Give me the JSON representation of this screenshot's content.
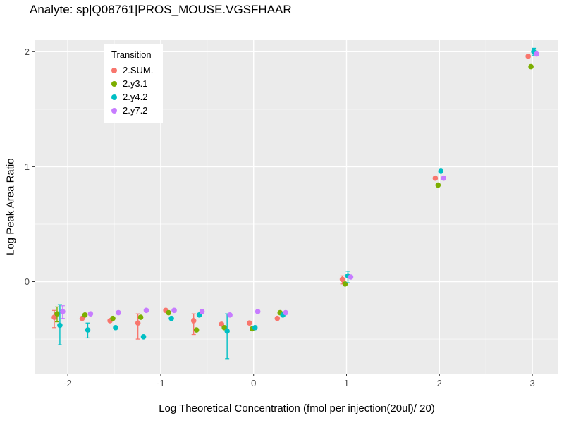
{
  "chart_data": {
    "type": "scatter",
    "title": "Analyte: sp|Q08761|PROS_MOUSE.VGSFHAAR",
    "xlabel": "Log Theoretical Concentration (fmol per injection(20ul)/ 20)",
    "ylabel": "Log Peak Area Ratio",
    "legend_title": "Transition",
    "legend_position": "top-left-inside",
    "grid": true,
    "panel_bg": "#EBEBEB",
    "grid_color": "#FFFFFF",
    "tick_color": "#333333",
    "tick_label_color": "#4D4D4D",
    "xlim": [
      -2.35,
      3.28
    ],
    "ylim": [
      -0.8,
      2.1
    ],
    "x_ticks": [
      -2,
      -1,
      0,
      1,
      2,
      3
    ],
    "x_minor": [
      -1.5,
      -0.5,
      0.5,
      1.5,
      2.5
    ],
    "y_ticks": [
      0,
      1,
      2
    ],
    "y_minor": [
      -0.5,
      0.5,
      1.5
    ],
    "x": [
      -2.1,
      -1.8,
      -1.5,
      -1.2,
      -0.9,
      -0.6,
      -0.3,
      0,
      0.3,
      1,
      2,
      3
    ],
    "series": [
      {
        "name": "2.SUM.",
        "color": "#F8766D",
        "dodge": -0.045,
        "y": [
          -0.31,
          -0.32,
          -0.34,
          -0.36,
          -0.25,
          -0.34,
          -0.37,
          -0.36,
          -0.32,
          0.02,
          0.9,
          1.96
        ],
        "ymin": [
          -0.4,
          null,
          null,
          -0.5,
          null,
          -0.46,
          null,
          null,
          null,
          -0.02,
          null,
          null
        ],
        "ymax": [
          -0.25,
          null,
          null,
          -0.28,
          null,
          -0.28,
          null,
          null,
          null,
          0.05,
          null,
          null
        ]
      },
      {
        "name": "2.y3.1",
        "color": "#7CAE00",
        "dodge": -0.015,
        "y": [
          -0.28,
          -0.29,
          -0.32,
          -0.31,
          -0.27,
          -0.42,
          -0.4,
          -0.41,
          -0.27,
          -0.02,
          0.84,
          1.87
        ],
        "ymin": [
          -0.35,
          null,
          null,
          null,
          null,
          null,
          null,
          null,
          null,
          null,
          null,
          null
        ],
        "ymax": [
          -0.22,
          null,
          null,
          null,
          null,
          null,
          null,
          null,
          null,
          null,
          null,
          null
        ]
      },
      {
        "name": "2.y4.2",
        "color": "#00BFC4",
        "dodge": 0.015,
        "y": [
          -0.38,
          -0.42,
          -0.4,
          -0.48,
          -0.32,
          -0.29,
          -0.43,
          -0.4,
          -0.29,
          0.05,
          0.96,
          2.0
        ],
        "ymin": [
          -0.55,
          -0.49,
          null,
          null,
          null,
          null,
          -0.67,
          null,
          null,
          -0.01,
          null,
          1.97
        ],
        "ymax": [
          -0.2,
          -0.36,
          null,
          null,
          null,
          null,
          -0.28,
          null,
          null,
          0.09,
          null,
          2.03
        ]
      },
      {
        "name": "2.y7.2",
        "color": "#C77CFF",
        "dodge": 0.045,
        "y": [
          -0.26,
          -0.28,
          -0.27,
          -0.25,
          -0.25,
          -0.26,
          -0.29,
          -0.26,
          -0.27,
          0.04,
          0.9,
          1.98
        ],
        "ymin": [
          -0.32,
          null,
          null,
          null,
          null,
          null,
          null,
          null,
          null,
          null,
          null,
          null
        ],
        "ymax": [
          -0.21,
          null,
          null,
          null,
          null,
          null,
          null,
          null,
          null,
          null,
          null,
          null
        ]
      }
    ]
  }
}
